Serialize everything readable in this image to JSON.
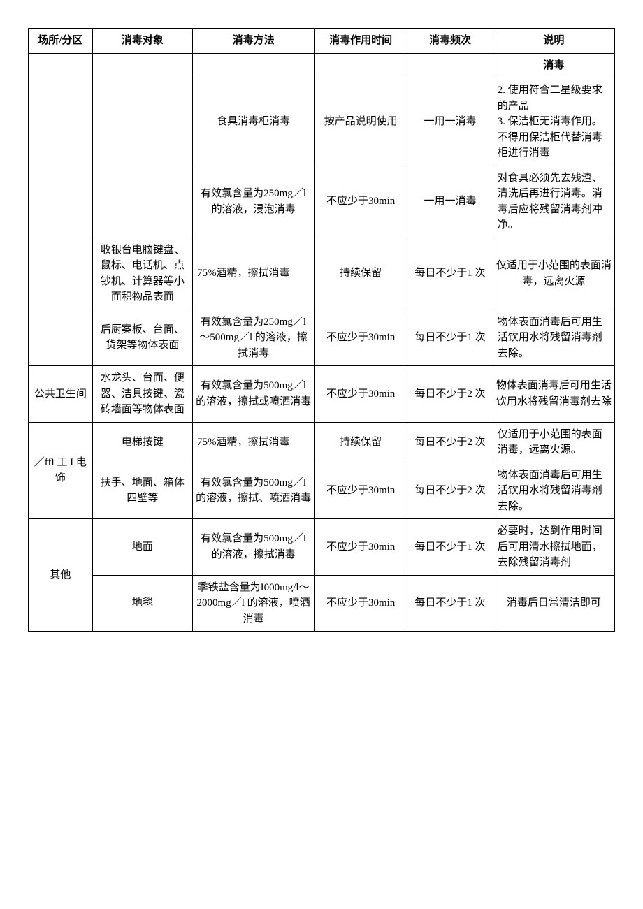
{
  "headers": {
    "place": "场所/分区",
    "target": "消毒对象",
    "method": "消毒方法",
    "time": "消毒作用时间",
    "freq": "消毒频次",
    "note": "说明"
  },
  "rows": {
    "r1_note": "消毒",
    "r2_method": "食具消毒柜消毒",
    "r2_time": "按产品说明使用",
    "r2_freq": "一用一消毒",
    "r2_note_a": "2. 使用符合二星级要求的产品",
    "r2_note_b": "3. 保洁柜无消毒作用。不得用保洁柜代替消毒柜进行消毒",
    "r3_method": "有效氯含量为250mg／l 的溶液，浸泡消毒",
    "r3_time": "不应少于30min",
    "r3_freq": "一用一消毒",
    "r3_note": "对食具必须先去残渣、清洗后再进行消毒。消毒后应将残留消毒剂冲净。",
    "r4_target": "收银台电脑键盘、鼠标、电话机、点钞机、计算器等小面积物品表面",
    "r4_method": "75%酒精，擦拭消毒",
    "r4_time": "持续保留",
    "r4_freq": "每日不少于1 次",
    "r4_note": "仅适用于小范围的表面消毒，远离火源",
    "r5_target": "后厨案板、台面、货架等物体表面",
    "r5_method": "有效氯含量为250mg／l～500mg／l 的溶液，擦拭消毒",
    "r5_time": "不应少于30min",
    "r5_freq": "每日不少于1 次",
    "r5_note": "物体表面消毒后可用生活饮用水将残留消毒剂去除。",
    "r6_place": "公共卫生间",
    "r6_target": "水龙头、台面、便器、洁具按键、瓷砖墙面等物体表面",
    "r6_method": "有效氯含量为500mg／l 的溶液，擦拭或喷洒消毒",
    "r6_time": "不应少于30min",
    "r6_freq": "每日不少于2 次",
    "r6_note": "物体表面消毒后可用生活饮用水将残留消毒剂去除",
    "r7_place": "／ffi 工 I 电饰",
    "r7_target": "电梯按键",
    "r7_method": "75%酒精，擦拭消毒",
    "r7_time": "持续保留",
    "r7_freq": "每日不少于2 次",
    "r7_note": "仅适用于小范围的表面消毒，远离火源。",
    "r8_target": "扶手、地面、箱体四壁等",
    "r8_method": "有效氯含量为500mg／l 的溶液，擦拭、喷洒消毒",
    "r8_time": "不应少于30min",
    "r8_freq": "每日不少于2 次",
    "r8_note": "物体表面消毒后可用生活饮用水将残留消毒剂去除。",
    "r9_place": "其他",
    "r9_target": "地面",
    "r9_method": "有效氯含量为500mg／l 的溶液，擦拭消毒",
    "r9_time": "不应少于30min",
    "r9_freq": "每日不少于1 次",
    "r9_note": "必要时，达到作用时间后可用清水擦拭地面，去除残留消毒剂",
    "r10_target": "地毯",
    "r10_method": "季铁盐含量为I000mg/l～2000mg／l 的溶液，喷洒消毒",
    "r10_time": "不应少于30min",
    "r10_freq": "每日不少于1 次",
    "r10_note": "消毒后日常清洁即可"
  }
}
